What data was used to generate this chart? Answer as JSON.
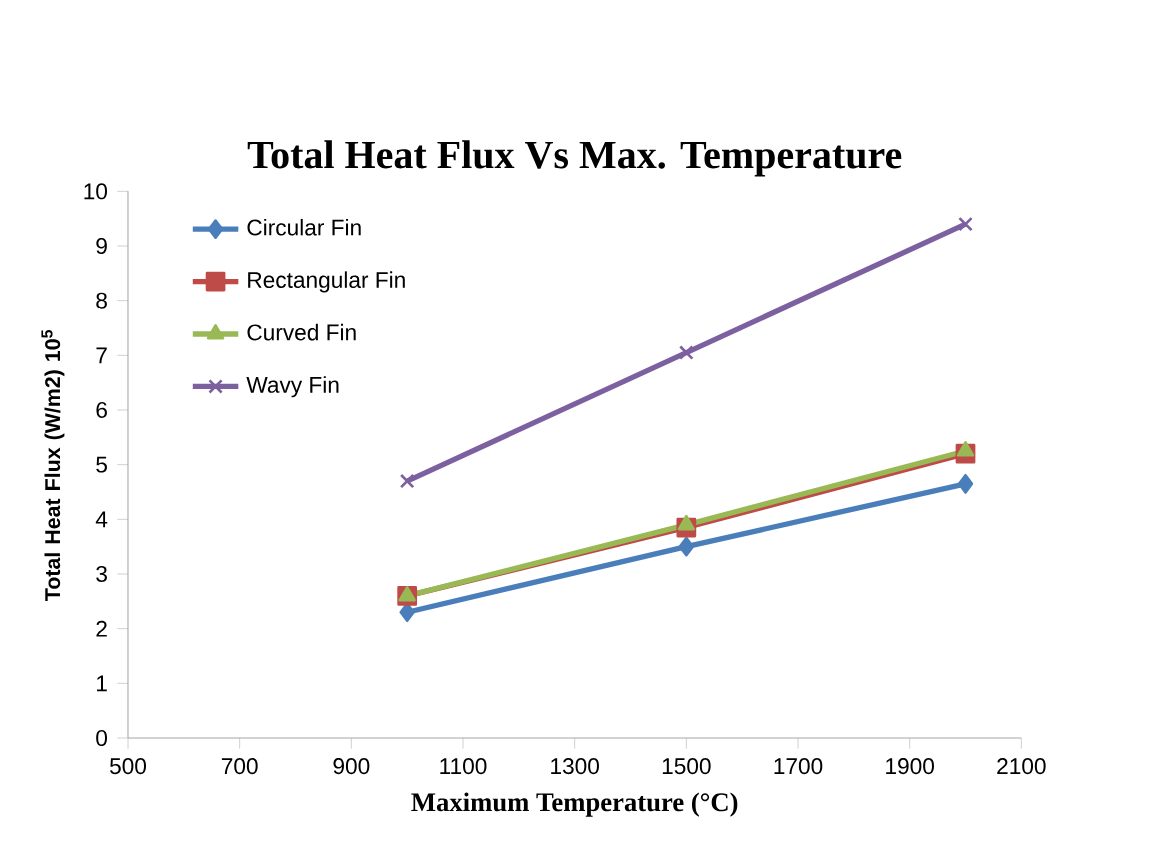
{
  "chart_data": {
    "type": "line",
    "title": "Total Heat Flux Vs Max. Temperature",
    "xlabel": "Maximum Temperature (°C)",
    "ylabel": "Total Heat  Flux (W/m2) 10$^{5}$",
    "x": [
      1000,
      1500,
      2000
    ],
    "series": [
      {
        "name": "Circular Fin",
        "color": "#4a7ebb",
        "marker": "diamond",
        "values": [
          2.3,
          3.5,
          4.65
        ]
      },
      {
        "name": "Rectangular Fin",
        "color": "#be4b48",
        "marker": "square",
        "values": [
          2.6,
          3.85,
          5.2
        ]
      },
      {
        "name": "Curved Fin",
        "color": "#98b954",
        "marker": "triangle",
        "values": [
          2.6,
          3.9,
          5.25
        ]
      },
      {
        "name": "Wavy Fin",
        "color": "#7d60a0",
        "marker": "cross",
        "values": [
          4.7,
          7.05,
          9.4
        ]
      }
    ],
    "xlim": [
      500,
      2100
    ],
    "xticks": [
      500,
      700,
      900,
      1100,
      1300,
      1500,
      1700,
      1900,
      2100
    ],
    "ylim": [
      0,
      10
    ],
    "yticks": [
      0,
      1,
      2,
      3,
      4,
      5,
      6,
      7,
      8,
      9,
      10
    ],
    "grid": false,
    "legend": "top left",
    "line_style": "solid"
  }
}
